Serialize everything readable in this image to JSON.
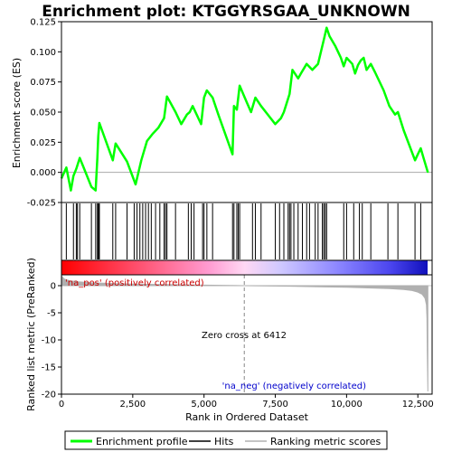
{
  "chart_data": {
    "type": "line",
    "title": "Enrichment plot: KTGGYRSGAA_UNKNOWN",
    "xlabel": "Rank in Ordered Dataset",
    "upper_ylabel": "Enrichment score (ES)",
    "lower_ylabel": "Ranked list metric (PreRanked)",
    "xlim": [
      0,
      13000
    ],
    "upper_ylim": [
      -0.025,
      0.125
    ],
    "lower_ylim": [
      -20,
      2
    ],
    "x_ticks": [
      0,
      2500,
      5000,
      7500,
      10000,
      12500
    ],
    "x_tick_labels": [
      "0",
      "2,500",
      "5,000",
      "7,500",
      "10,000",
      "12,500"
    ],
    "upper_y_ticks": [
      -0.025,
      0.0,
      0.025,
      0.05,
      0.075,
      0.1,
      0.125
    ],
    "upper_y_tick_labels": [
      "-0.025",
      "0.000",
      "0.025",
      "0.050",
      "0.075",
      "0.100",
      "0.125"
    ],
    "lower_y_ticks": [
      0,
      -5,
      -10,
      -15,
      -20
    ],
    "lower_y_tick_labels": [
      "0",
      "-5",
      "-10",
      "-15",
      "-20"
    ],
    "enrichment_profile": {
      "name": "Enrichment profile",
      "color": "#00ff00",
      "x": [
        0,
        170,
        330,
        420,
        520,
        640,
        760,
        1050,
        1200,
        1260,
        1290,
        1330,
        1800,
        1900,
        2300,
        2600,
        2800,
        3000,
        3200,
        3400,
        3600,
        3700,
        4000,
        4200,
        4400,
        4500,
        4600,
        4900,
        5000,
        5100,
        5300,
        5500,
        6000,
        6050,
        6150,
        6250,
        6500,
        6650,
        6800,
        7000,
        7500,
        7700,
        7800,
        8000,
        8100,
        8300,
        8400,
        8600,
        8800,
        9000,
        9100,
        9200,
        9300,
        9400,
        9600,
        9800,
        9900,
        10000,
        10200,
        10300,
        10400,
        10500,
        10600,
        10700,
        10850,
        11000,
        11300,
        11500,
        11700,
        11800,
        12000,
        12400,
        12500,
        12600,
        12700,
        12850
      ],
      "y": [
        -0.005,
        0.004,
        -0.015,
        -0.003,
        0.003,
        0.012,
        0.005,
        -0.012,
        -0.015,
        0.012,
        0.03,
        0.041,
        0.01,
        0.024,
        0.009,
        -0.01,
        0.01,
        0.026,
        0.032,
        0.037,
        0.045,
        0.063,
        0.05,
        0.04,
        0.048,
        0.05,
        0.055,
        0.04,
        0.062,
        0.068,
        0.062,
        0.048,
        0.015,
        0.055,
        0.052,
        0.072,
        0.058,
        0.05,
        0.062,
        0.055,
        0.04,
        0.045,
        0.05,
        0.065,
        0.085,
        0.078,
        0.082,
        0.09,
        0.085,
        0.09,
        0.1,
        0.11,
        0.12,
        0.113,
        0.105,
        0.095,
        0.088,
        0.095,
        0.09,
        0.082,
        0.089,
        0.093,
        0.095,
        0.085,
        0.09,
        0.083,
        0.068,
        0.055,
        0.048,
        0.05,
        0.035,
        0.01,
        0.015,
        0.02,
        0.012,
        0.0
      ]
    },
    "hits": {
      "name": "Hits",
      "positions": [
        170,
        420,
        520,
        560,
        640,
        1050,
        1200,
        1260,
        1290,
        1310,
        1330,
        1800,
        1900,
        2300,
        2550,
        2650,
        2750,
        2850,
        2950,
        3050,
        3150,
        3300,
        3450,
        3600,
        3650,
        3700,
        4000,
        4450,
        4550,
        4650,
        4950,
        5000,
        5100,
        5300,
        6000,
        6050,
        6150,
        6200,
        6250,
        6700,
        6800,
        7000,
        7500,
        7650,
        7800,
        7950,
        8000,
        8050,
        8150,
        8300,
        8450,
        8600,
        8700,
        8900,
        9000,
        9150,
        9200,
        9250,
        9300,
        9900,
        10000,
        10250,
        10450,
        10550,
        10850,
        11450,
        11800,
        12400,
        12600
      ]
    },
    "ranking_metric": {
      "name": "Ranking metric scores",
      "x": [
        0,
        100,
        300,
        600,
        1000,
        2000,
        3000,
        4000,
        5000,
        6000,
        6412,
        7000,
        8000,
        9000,
        10000,
        11000,
        11500,
        12000,
        12300,
        12500,
        12650,
        12750,
        12800,
        12820,
        12830,
        12850
      ],
      "y": [
        1.8,
        1.2,
        0.9,
        0.7,
        0.55,
        0.35,
        0.25,
        0.18,
        0.1,
        0.04,
        0.0,
        -0.05,
        -0.1,
        -0.2,
        -0.3,
        -0.45,
        -0.55,
        -0.7,
        -0.9,
        -1.2,
        -1.6,
        -2.3,
        -3.5,
        -6.0,
        -12.0,
        -19.5
      ]
    },
    "zero_cross_rank": 6412,
    "annotations": {
      "pos_label": "'na_pos' (positively correlated)",
      "neg_label": "'na_neg' (negatively correlated)",
      "zero_cross": "Zero cross at 6412"
    },
    "colors": {
      "pos_label": "#cc0000",
      "neg_label": "#0000cc",
      "hit": "#000000",
      "metric": "#b0b0b0",
      "zero_line": "#aaaaaa",
      "zero_cross_line": "#888888"
    },
    "heatmap_gradient": [
      {
        "offset": 0.0,
        "color": "#ff0000"
      },
      {
        "offset": 0.2,
        "color": "#ff4d6a"
      },
      {
        "offset": 0.4,
        "color": "#ff9ad0"
      },
      {
        "offset": 0.5,
        "color": "#ffd8f4"
      },
      {
        "offset": 0.6,
        "color": "#cfc8ff"
      },
      {
        "offset": 0.76,
        "color": "#8a84ff"
      },
      {
        "offset": 0.9,
        "color": "#4a44ee"
      },
      {
        "offset": 1.0,
        "color": "#1010bb"
      }
    ],
    "legend": {
      "position": "bottom",
      "items": [
        {
          "label": "Enrichment profile",
          "kind": "line",
          "color": "#00ff00"
        },
        {
          "label": "Hits",
          "kind": "line",
          "color": "#000000"
        },
        {
          "label": "Ranking metric scores",
          "kind": "line",
          "color": "#b0b0b0"
        }
      ]
    }
  }
}
